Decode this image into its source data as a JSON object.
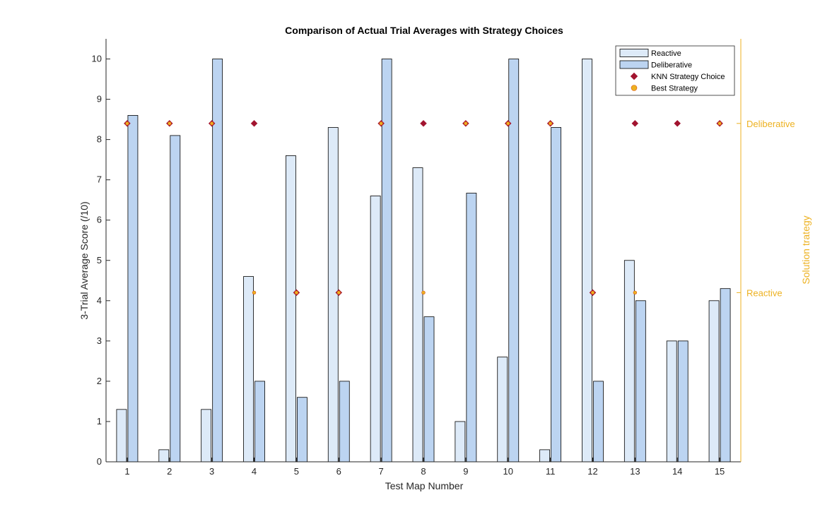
{
  "chart_data": {
    "type": "bar",
    "title": "Comparison of Actual Trial Averages with Strategy Choices",
    "xlabel": "Test Map Number",
    "ylabel": "3-Trial Average Score (/10)",
    "y2label": "Solution trategy",
    "categories": [
      "1",
      "2",
      "3",
      "4",
      "5",
      "6",
      "7",
      "8",
      "9",
      "10",
      "11",
      "12",
      "13",
      "14",
      "15"
    ],
    "ylim": [
      0,
      10.5
    ],
    "yticks": [
      0,
      1,
      2,
      3,
      4,
      5,
      6,
      7,
      8,
      9,
      10
    ],
    "y2_categories": [
      "Reactive",
      "Deliberative"
    ],
    "y2_levels": [
      4.2,
      8.4
    ],
    "y2_color": "#edb120",
    "grid": false,
    "legend_position": "top-right",
    "series": [
      {
        "name": "Reactive",
        "kind": "bar",
        "color": "#ddeaf8",
        "values": [
          1.3,
          0.3,
          1.3,
          4.6,
          7.6,
          8.3,
          6.6,
          7.3,
          1.0,
          2.6,
          0.3,
          10,
          5.0,
          3.0,
          4.0
        ]
      },
      {
        "name": "Deliberative",
        "kind": "bar",
        "color": "#bcd4f1",
        "values": [
          8.6,
          8.1,
          10,
          2.0,
          1.6,
          2.0,
          10,
          3.6,
          6.67,
          10,
          8.3,
          2.0,
          4.0,
          3.0,
          4.3
        ]
      },
      {
        "name": "KNN Strategy Choice",
        "kind": "marker",
        "marker": "diamond",
        "color": "#a2142f",
        "values": [
          "Deliberative",
          "Deliberative",
          "Deliberative",
          "Deliberative",
          "Reactive",
          "Reactive",
          "Deliberative",
          "Deliberative",
          "Deliberative",
          "Deliberative",
          "Deliberative",
          "Reactive",
          "Deliberative",
          "Deliberative",
          "Deliberative"
        ]
      },
      {
        "name": "Best Strategy",
        "kind": "marker",
        "marker": "circle",
        "color": "#edb120",
        "values": [
          "Deliberative",
          "Deliberative",
          "Deliberative",
          "Reactive",
          "Reactive",
          "Reactive",
          "Deliberative",
          "Reactive",
          "Deliberative",
          "Deliberative",
          "Deliberative",
          "Reactive",
          "Reactive",
          "",
          "Deliberative"
        ]
      }
    ]
  }
}
